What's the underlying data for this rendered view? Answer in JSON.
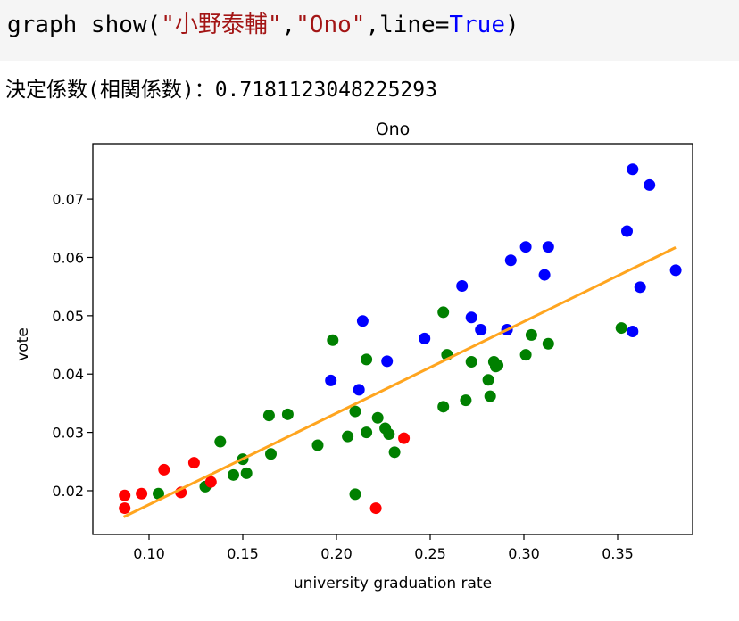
{
  "code_cell": {
    "tokens": [
      {
        "text": "graph_show(",
        "type": "plain"
      },
      {
        "text": "\"小野泰輔\"",
        "type": "str"
      },
      {
        "text": ",",
        "type": "plain"
      },
      {
        "text": "\"Ono\"",
        "type": "str"
      },
      {
        "text": ",line=",
        "type": "plain"
      },
      {
        "text": "True",
        "type": "kw"
      },
      {
        "text": ")",
        "type": "plain"
      }
    ]
  },
  "output": {
    "label": "決定係数(相関係数)：",
    "value": "0.7181123048225293"
  },
  "colors": {
    "string": "#a31515",
    "keyword": "#0000ff",
    "fit_line": "#ffa51f",
    "blue": "#0000ff",
    "green": "#008000",
    "red": "#ff0000"
  },
  "chart_data": {
    "type": "scatter",
    "title": "Ono",
    "xlabel": "university graduation rate",
    "ylabel": "vote",
    "xlim": [
      0.07,
      0.39
    ],
    "ylim": [
      0.0125,
      0.0795
    ],
    "xticks": [
      0.1,
      0.15,
      0.2,
      0.25,
      0.3,
      0.35
    ],
    "xtick_labels": [
      "0.10",
      "0.15",
      "0.20",
      "0.25",
      "0.30",
      "0.35"
    ],
    "yticks": [
      0.02,
      0.03,
      0.04,
      0.05,
      0.06,
      0.07
    ],
    "ytick_labels": [
      "0.02",
      "0.03",
      "0.04",
      "0.05",
      "0.06",
      "0.07"
    ],
    "fit_line": {
      "x": [
        0.0865,
        0.381
      ],
      "y": [
        0.0155,
        0.0617
      ]
    },
    "series": [
      {
        "color": "blue",
        "x": [
          0.358,
          0.367,
          0.355,
          0.381,
          0.362,
          0.358,
          0.301,
          0.313,
          0.293,
          0.311,
          0.267,
          0.272,
          0.277,
          0.291,
          0.247,
          0.214,
          0.227,
          0.197,
          0.212
        ],
        "y": [
          0.0751,
          0.0724,
          0.0645,
          0.0578,
          0.0549,
          0.0473,
          0.0618,
          0.0618,
          0.0595,
          0.057,
          0.0551,
          0.0497,
          0.0476,
          0.0476,
          0.0461,
          0.0491,
          0.0422,
          0.0389,
          0.0373
        ]
      },
      {
        "color": "green",
        "x": [
          0.352,
          0.313,
          0.304,
          0.301,
          0.257,
          0.259,
          0.272,
          0.269,
          0.257,
          0.281,
          0.284,
          0.286,
          0.285,
          0.282,
          0.198,
          0.216,
          0.21,
          0.222,
          0.226,
          0.228,
          0.216,
          0.231,
          0.206,
          0.19,
          0.174,
          0.164,
          0.165,
          0.138,
          0.15,
          0.152,
          0.145,
          0.13,
          0.105,
          0.21
        ],
        "y": [
          0.0479,
          0.0452,
          0.0467,
          0.0433,
          0.0506,
          0.0433,
          0.0421,
          0.0355,
          0.0344,
          0.039,
          0.0421,
          0.0415,
          0.0413,
          0.0362,
          0.0458,
          0.0425,
          0.0336,
          0.0325,
          0.0307,
          0.0297,
          0.03,
          0.0266,
          0.0293,
          0.0278,
          0.0331,
          0.0329,
          0.0263,
          0.0284,
          0.0254,
          0.023,
          0.0227,
          0.0207,
          0.0195,
          0.0194
        ]
      },
      {
        "color": "red",
        "x": [
          0.087,
          0.087,
          0.096,
          0.108,
          0.117,
          0.124,
          0.133,
          0.236,
          0.221
        ],
        "y": [
          0.0192,
          0.017,
          0.0195,
          0.0236,
          0.0197,
          0.0248,
          0.0215,
          0.029,
          0.017
        ]
      }
    ]
  }
}
